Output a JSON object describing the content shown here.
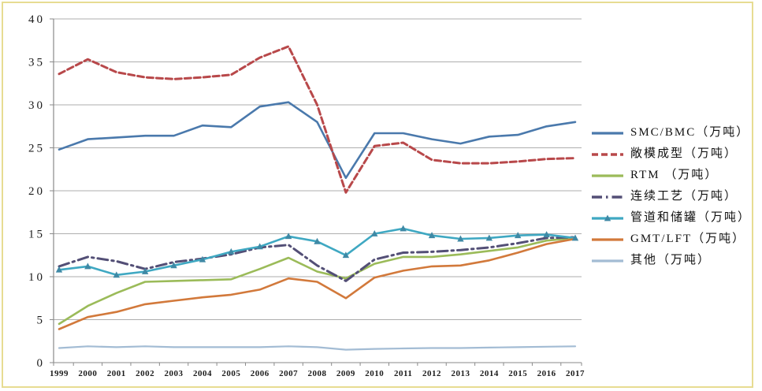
{
  "chart_data": {
    "type": "line",
    "title": "",
    "xlabel": "",
    "ylabel": "",
    "ylim": [
      0,
      40
    ],
    "ytick_step": 5,
    "grid": true,
    "legend_position": "right",
    "x": [
      1999,
      2000,
      2001,
      2002,
      2003,
      2004,
      2005,
      2006,
      2007,
      2008,
      2009,
      2010,
      2011,
      2012,
      2013,
      2014,
      2015,
      2016,
      2017
    ],
    "x_tick_labels": [
      "1999",
      "2000",
      "2001",
      "2002",
      "2003",
      "2004",
      "2005",
      "2006",
      "2007",
      "2008",
      "2009",
      "2010",
      "2011",
      "2012",
      "2013",
      "2014",
      "2015",
      "2016",
      "2017"
    ],
    "y_tick_labels": [
      "0",
      "5",
      "10",
      "15",
      "20",
      "25",
      "30",
      "35",
      "40"
    ],
    "series": [
      {
        "id": "smc-bmc",
        "name": "SMC/BMC（万吨）",
        "color": "#4a79ac",
        "style": "solid",
        "marker": "none",
        "values": [
          24.8,
          26.0,
          26.2,
          26.4,
          26.4,
          27.6,
          27.4,
          29.8,
          30.3,
          28.0,
          21.5,
          26.7,
          26.7,
          26.0,
          25.5,
          26.3,
          26.5,
          27.5,
          28.0
        ]
      },
      {
        "id": "open-mold",
        "name": "敞模成型（万吨）",
        "color": "#b8484a",
        "style": "dashed",
        "marker": "none",
        "values": [
          33.6,
          35.3,
          33.8,
          33.2,
          33.0,
          33.2,
          33.5,
          35.5,
          36.8,
          30.0,
          19.8,
          25.2,
          25.6,
          23.6,
          23.2,
          23.2,
          23.4,
          23.7,
          23.8
        ]
      },
      {
        "id": "rtm",
        "name": "RTM （万吨）",
        "color": "#9bbb59",
        "style": "solid",
        "marker": "none",
        "values": [
          4.5,
          6.6,
          8.1,
          9.4,
          9.5,
          9.6,
          9.7,
          10.9,
          12.2,
          10.6,
          9.8,
          11.5,
          12.3,
          12.3,
          12.6,
          13.0,
          13.4,
          14.2,
          14.5
        ]
      },
      {
        "id": "continuous-process",
        "name": "连续工艺（万吨）",
        "color": "#534f76",
        "style": "dash-dot",
        "marker": "none",
        "values": [
          11.2,
          12.3,
          11.8,
          10.9,
          11.7,
          12.1,
          12.6,
          13.4,
          13.7,
          11.3,
          9.5,
          12.0,
          12.8,
          12.9,
          13.1,
          13.4,
          13.9,
          14.5,
          14.6
        ]
      },
      {
        "id": "pipes-tanks",
        "name": "管道和储罐（万吨）",
        "color": "#3fa8c2",
        "style": "solid",
        "marker": "triangle",
        "marker_color": "#3f89a5",
        "values": [
          10.8,
          11.2,
          10.2,
          10.6,
          11.3,
          12.0,
          12.9,
          13.5,
          14.7,
          14.1,
          12.5,
          15.0,
          15.6,
          14.8,
          14.4,
          14.5,
          14.8,
          14.9,
          14.5
        ]
      },
      {
        "id": "gmt-lft",
        "name": "GMT/LFT（万吨）",
        "color": "#d2793b",
        "style": "solid",
        "marker": "none",
        "values": [
          3.9,
          5.3,
          5.9,
          6.8,
          7.2,
          7.6,
          7.9,
          8.5,
          9.8,
          9.4,
          7.5,
          9.9,
          10.7,
          11.2,
          11.3,
          11.9,
          12.8,
          13.8,
          14.4
        ]
      },
      {
        "id": "other",
        "name": "其他（万吨）",
        "color": "#a3bcd4",
        "style": "solid",
        "marker": "none",
        "values": [
          1.7,
          1.9,
          1.8,
          1.9,
          1.8,
          1.8,
          1.8,
          1.8,
          1.9,
          1.8,
          1.5,
          1.6,
          1.65,
          1.7,
          1.7,
          1.75,
          1.8,
          1.85,
          1.9
        ]
      }
    ]
  },
  "colors": {
    "grid": "#aeaeae",
    "axis": "#8a8a8a",
    "frame_border": "#e7dc92",
    "background": "#ffffff",
    "tick_text": "#1c1c1c"
  }
}
